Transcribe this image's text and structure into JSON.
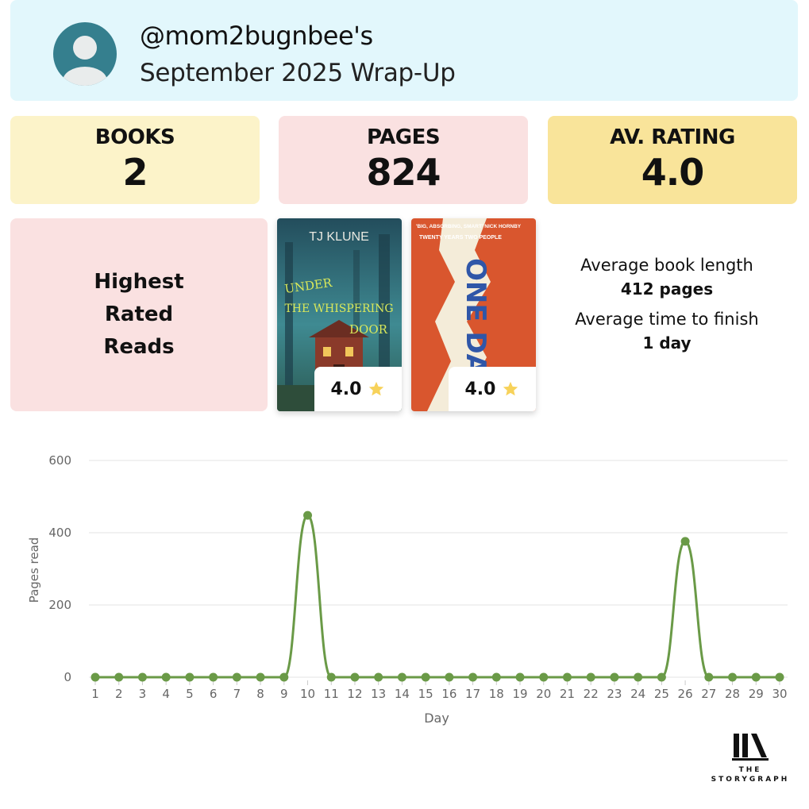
{
  "header": {
    "handle": "@mom2bugnbee's",
    "subtitle": "September 2025 Wrap-Up"
  },
  "stats": [
    {
      "label": "BOOKS",
      "value": "2",
      "color": "#fcf3c9"
    },
    {
      "label": "PAGES",
      "value": "824",
      "color": "#fae1e1"
    },
    {
      "label": "AV. RATING",
      "value": "4.0",
      "color": "#f9e49a"
    }
  ],
  "highest_rated": {
    "label": "Highest Rated Reads",
    "books": [
      {
        "author": "TJ KLUNE",
        "title_lines": [
          "UNDER",
          "THE WHISPERING",
          "DOOR"
        ],
        "rating": "4.0",
        "cover_color": "#3c7d8a"
      },
      {
        "tagline": "'BIG, ABSORBING, SMART' NICK HORNBY",
        "subline": "TWENTY YEARS TWO PEOPLE",
        "title": "ONE DAY",
        "rating": "4.0",
        "cover_color": "#d9562e"
      }
    ],
    "star_icon": "star-icon",
    "star_color": "#f7d25a"
  },
  "averages": {
    "length_label": "Average book length",
    "length_value": "412 pages",
    "time_label": "Average time to finish",
    "time_value": "1 day"
  },
  "chart_data": {
    "type": "line",
    "x": [
      1,
      2,
      3,
      4,
      5,
      6,
      7,
      8,
      9,
      10,
      11,
      12,
      13,
      14,
      15,
      16,
      17,
      18,
      19,
      20,
      21,
      22,
      23,
      24,
      25,
      26,
      27,
      28,
      29,
      30
    ],
    "series": [
      {
        "values": [
          0,
          0,
          0,
          0,
          0,
          0,
          0,
          0,
          0,
          448,
          0,
          0,
          0,
          0,
          0,
          0,
          0,
          0,
          0,
          0,
          0,
          0,
          0,
          0,
          0,
          376,
          0,
          0,
          0,
          0
        ],
        "color": "#6a9a47"
      }
    ],
    "xlabel": "Day",
    "ylabel": "Pages read",
    "ylim": [
      0,
      600
    ],
    "yticks": [
      0,
      200,
      400,
      600
    ],
    "grid": true
  },
  "logo": {
    "line1": "THE",
    "line2": "STORYGRAPH",
    "icon": "storygraph-logo-icon"
  }
}
